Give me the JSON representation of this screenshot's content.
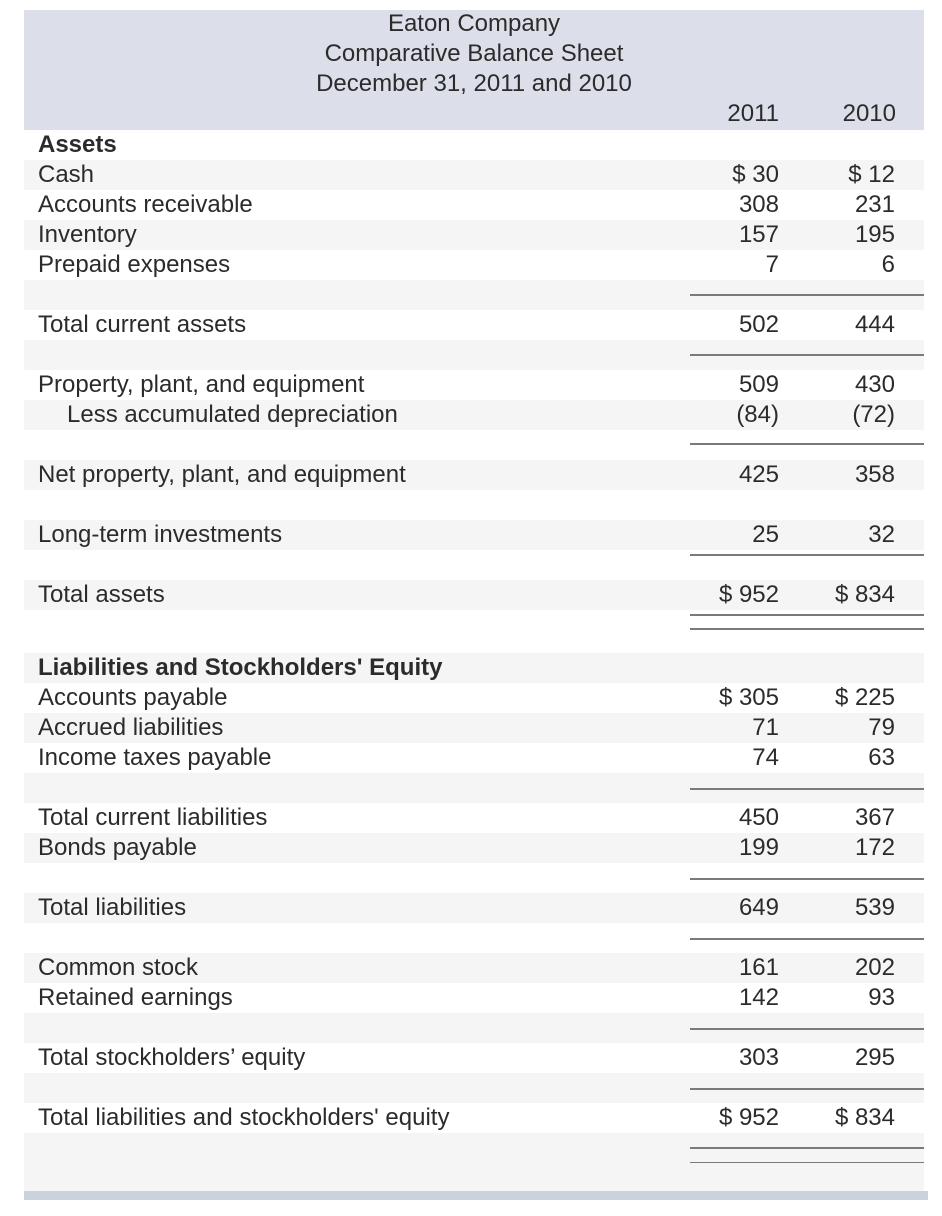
{
  "header": {
    "company": "Eaton Company",
    "statement": "Comparative Balance Sheet",
    "period": "December 31, 2011 and 2010",
    "year1": "2011",
    "year2": "2010"
  },
  "assets": {
    "heading": "Assets",
    "cash": {
      "label": "Cash",
      "y2011": "$ 30",
      "y2010": "$ 12"
    },
    "ar": {
      "label": "Accounts receivable",
      "y2011": "308",
      "y2010": "231"
    },
    "inventory": {
      "label": "Inventory",
      "y2011": "157",
      "y2010": "195"
    },
    "prepaid": {
      "label": "Prepaid expenses",
      "y2011": "7",
      "y2010": "6"
    },
    "total_current": {
      "label": "Total current assets",
      "y2011": "502",
      "y2010": "444"
    },
    "ppe": {
      "label": "Property, plant, and equipment",
      "y2011": "509",
      "y2010": "430"
    },
    "acc_dep": {
      "label": "Less accumulated depreciation",
      "y2011": "(84)",
      "y2010": "(72)"
    },
    "net_ppe": {
      "label": "Net property, plant, and equipment",
      "y2011": "425",
      "y2010": "358"
    },
    "lti": {
      "label": "Long-term investments",
      "y2011": "25",
      "y2010": "32"
    },
    "total": {
      "label": "Total assets",
      "y2011": "$ 952",
      "y2010": "$ 834"
    }
  },
  "liabilities": {
    "heading": "Liabilities and Stockholders' Equity",
    "ap": {
      "label": "Accounts payable",
      "y2011": "$ 305",
      "y2010": "$ 225"
    },
    "accrued": {
      "label": "Accrued liabilities",
      "y2011": "71",
      "y2010": "79"
    },
    "taxes": {
      "label": "Income taxes payable",
      "y2011": "74",
      "y2010": "63"
    },
    "total_current": {
      "label": "Total current liabilities",
      "y2011": "450",
      "y2010": "367"
    },
    "bonds": {
      "label": "Bonds payable",
      "y2011": "199",
      "y2010": "172"
    },
    "total": {
      "label": "Total liabilities",
      "y2011": "649",
      "y2010": "539"
    },
    "common": {
      "label": "Common stock",
      "y2011": "161",
      "y2010": "202"
    },
    "retained": {
      "label": "Retained earnings",
      "y2011": "142",
      "y2010": "93"
    },
    "total_se": {
      "label": "Total stockholders’ equity",
      "y2011": "303",
      "y2010": "295"
    },
    "total_lse": {
      "label": "Total liabilities and stockholders' equity",
      "y2011": "$ 952",
      "y2010": "$ 834"
    }
  }
}
